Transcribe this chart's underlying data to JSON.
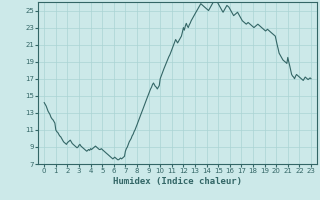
{
  "title": "",
  "xlabel": "Humidex (Indice chaleur)",
  "ylabel": "",
  "xlim": [
    -0.5,
    23.5
  ],
  "ylim": [
    7,
    26
  ],
  "yticks": [
    7,
    9,
    11,
    13,
    15,
    17,
    19,
    21,
    23,
    25
  ],
  "xticks": [
    0,
    1,
    2,
    3,
    4,
    5,
    6,
    7,
    8,
    9,
    10,
    11,
    12,
    13,
    14,
    15,
    16,
    17,
    18,
    19,
    20,
    21,
    22,
    23
  ],
  "bg_color": "#cce9e9",
  "grid_color": "#aad4d4",
  "line_color": "#336666",
  "line_width": 0.8,
  "x": [
    0.0,
    0.08,
    0.17,
    0.25,
    0.33,
    0.42,
    0.5,
    0.58,
    0.67,
    0.75,
    0.83,
    0.92,
    1.0,
    1.08,
    1.17,
    1.25,
    1.33,
    1.42,
    1.5,
    1.58,
    1.67,
    1.75,
    1.83,
    1.92,
    2.0,
    2.08,
    2.17,
    2.25,
    2.33,
    2.42,
    2.5,
    2.58,
    2.67,
    2.75,
    2.83,
    2.92,
    3.0,
    3.08,
    3.17,
    3.25,
    3.33,
    3.42,
    3.5,
    3.58,
    3.67,
    3.75,
    3.83,
    3.92,
    4.0,
    4.08,
    4.17,
    4.25,
    4.33,
    4.42,
    4.5,
    4.58,
    4.67,
    4.75,
    4.83,
    4.92,
    5.0,
    5.08,
    5.17,
    5.25,
    5.33,
    5.42,
    5.5,
    5.58,
    5.67,
    5.75,
    5.83,
    5.92,
    6.0,
    6.08,
    6.17,
    6.25,
    6.33,
    6.42,
    6.5,
    6.58,
    6.67,
    6.75,
    6.83,
    6.92,
    7.0,
    7.08,
    7.17,
    7.25,
    7.33,
    7.42,
    7.5,
    7.58,
    7.67,
    7.75,
    7.83,
    7.92,
    8.0,
    8.08,
    8.17,
    8.25,
    8.33,
    8.42,
    8.5,
    8.58,
    8.67,
    8.75,
    8.83,
    8.92,
    9.0,
    9.08,
    9.17,
    9.25,
    9.33,
    9.42,
    9.5,
    9.58,
    9.67,
    9.75,
    9.83,
    9.92,
    10.0,
    10.08,
    10.17,
    10.25,
    10.33,
    10.42,
    10.5,
    10.58,
    10.67,
    10.75,
    10.83,
    10.92,
    11.0,
    11.08,
    11.17,
    11.25,
    11.33,
    11.42,
    11.5,
    11.58,
    11.67,
    11.75,
    11.83,
    11.92,
    12.0,
    12.08,
    12.17,
    12.25,
    12.33,
    12.42,
    12.5,
    12.58,
    12.67,
    12.75,
    12.83,
    12.92,
    13.0,
    13.08,
    13.17,
    13.25,
    13.33,
    13.42,
    13.5,
    13.58,
    13.67,
    13.75,
    13.83,
    13.92,
    14.0,
    14.08,
    14.17,
    14.25,
    14.33,
    14.42,
    14.5,
    14.58,
    14.67,
    14.75,
    14.83,
    14.92,
    15.0,
    15.08,
    15.17,
    15.25,
    15.33,
    15.42,
    15.5,
    15.58,
    15.67,
    15.75,
    15.83,
    15.92,
    16.0,
    16.08,
    16.17,
    16.25,
    16.33,
    16.42,
    16.5,
    16.58,
    16.67,
    16.75,
    16.83,
    16.92,
    17.0,
    17.08,
    17.17,
    17.25,
    17.33,
    17.42,
    17.5,
    17.58,
    17.67,
    17.75,
    17.83,
    17.92,
    18.0,
    18.08,
    18.17,
    18.25,
    18.33,
    18.42,
    18.5,
    18.58,
    18.67,
    18.75,
    18.83,
    18.92,
    19.0,
    19.08,
    19.17,
    19.25,
    19.33,
    19.42,
    19.5,
    19.58,
    19.67,
    19.75,
    19.83,
    19.92,
    20.0,
    20.08,
    20.17,
    20.25,
    20.33,
    20.42,
    20.5,
    20.58,
    20.67,
    20.75,
    20.83,
    20.92,
    21.0,
    21.08,
    21.17,
    21.25,
    21.33,
    21.42,
    21.5,
    21.58,
    21.67,
    21.75,
    21.83,
    21.92,
    22.0,
    22.08,
    22.17,
    22.25,
    22.33,
    22.42,
    22.5,
    22.58,
    22.67,
    22.75,
    22.83,
    22.92,
    23.0
  ],
  "y": [
    14.2,
    14.0,
    13.8,
    13.5,
    13.2,
    13.0,
    12.8,
    12.5,
    12.3,
    12.2,
    12.0,
    11.8,
    11.0,
    10.8,
    10.7,
    10.5,
    10.3,
    10.2,
    10.0,
    9.8,
    9.6,
    9.5,
    9.4,
    9.3,
    9.5,
    9.6,
    9.7,
    9.8,
    9.6,
    9.4,
    9.3,
    9.2,
    9.1,
    9.0,
    8.9,
    9.0,
    9.2,
    9.3,
    9.1,
    9.0,
    8.9,
    8.8,
    8.7,
    8.6,
    8.5,
    8.6,
    8.7,
    8.6,
    8.8,
    8.7,
    8.8,
    8.9,
    9.0,
    9.1,
    9.0,
    8.9,
    8.8,
    8.7,
    8.7,
    8.8,
    8.7,
    8.6,
    8.5,
    8.4,
    8.3,
    8.2,
    8.1,
    8.0,
    7.9,
    7.8,
    7.7,
    7.6,
    7.7,
    7.8,
    7.7,
    7.6,
    7.5,
    7.5,
    7.6,
    7.7,
    7.6,
    7.7,
    7.8,
    7.9,
    8.5,
    8.8,
    9.0,
    9.3,
    9.6,
    9.8,
    10.0,
    10.3,
    10.5,
    10.8,
    11.0,
    11.3,
    11.6,
    11.9,
    12.2,
    12.5,
    12.8,
    13.1,
    13.4,
    13.7,
    14.0,
    14.3,
    14.6,
    14.9,
    15.2,
    15.5,
    15.8,
    16.0,
    16.3,
    16.5,
    16.3,
    16.1,
    16.0,
    15.8,
    16.0,
    16.2,
    17.0,
    17.3,
    17.6,
    17.9,
    18.2,
    18.5,
    18.8,
    19.0,
    19.3,
    19.6,
    19.8,
    20.1,
    20.4,
    20.7,
    21.0,
    21.3,
    21.6,
    21.4,
    21.2,
    21.4,
    21.6,
    21.8,
    22.0,
    22.5,
    23.0,
    22.7,
    23.2,
    23.5,
    23.2,
    23.0,
    23.3,
    23.5,
    23.8,
    24.0,
    24.2,
    24.4,
    24.6,
    24.8,
    25.0,
    25.2,
    25.4,
    25.6,
    25.8,
    25.7,
    25.6,
    25.5,
    25.4,
    25.3,
    25.2,
    25.1,
    25.0,
    25.2,
    25.4,
    25.6,
    25.8,
    26.0,
    26.1,
    26.2,
    26.3,
    26.0,
    25.8,
    25.6,
    25.4,
    25.2,
    25.0,
    24.8,
    25.0,
    25.2,
    25.4,
    25.6,
    25.5,
    25.4,
    25.2,
    25.0,
    24.8,
    24.6,
    24.4,
    24.5,
    24.6,
    24.7,
    24.8,
    24.6,
    24.4,
    24.2,
    24.0,
    23.8,
    23.7,
    23.6,
    23.5,
    23.4,
    23.5,
    23.6,
    23.5,
    23.4,
    23.3,
    23.2,
    23.1,
    23.0,
    23.1,
    23.2,
    23.3,
    23.4,
    23.3,
    23.2,
    23.1,
    23.0,
    22.9,
    22.8,
    22.7,
    22.6,
    22.7,
    22.8,
    22.7,
    22.6,
    22.5,
    22.4,
    22.3,
    22.2,
    22.1,
    22.0,
    21.5,
    21.0,
    20.5,
    20.0,
    19.8,
    19.6,
    19.4,
    19.2,
    19.1,
    19.0,
    18.9,
    18.8,
    19.5,
    19.0,
    18.5,
    18.0,
    17.5,
    17.3,
    17.2,
    17.0,
    17.3,
    17.5,
    17.4,
    17.3,
    17.2,
    17.1,
    17.0,
    16.9,
    16.8,
    17.0,
    17.2,
    17.1,
    17.0,
    16.9,
    17.0,
    17.1,
    17.0
  ]
}
